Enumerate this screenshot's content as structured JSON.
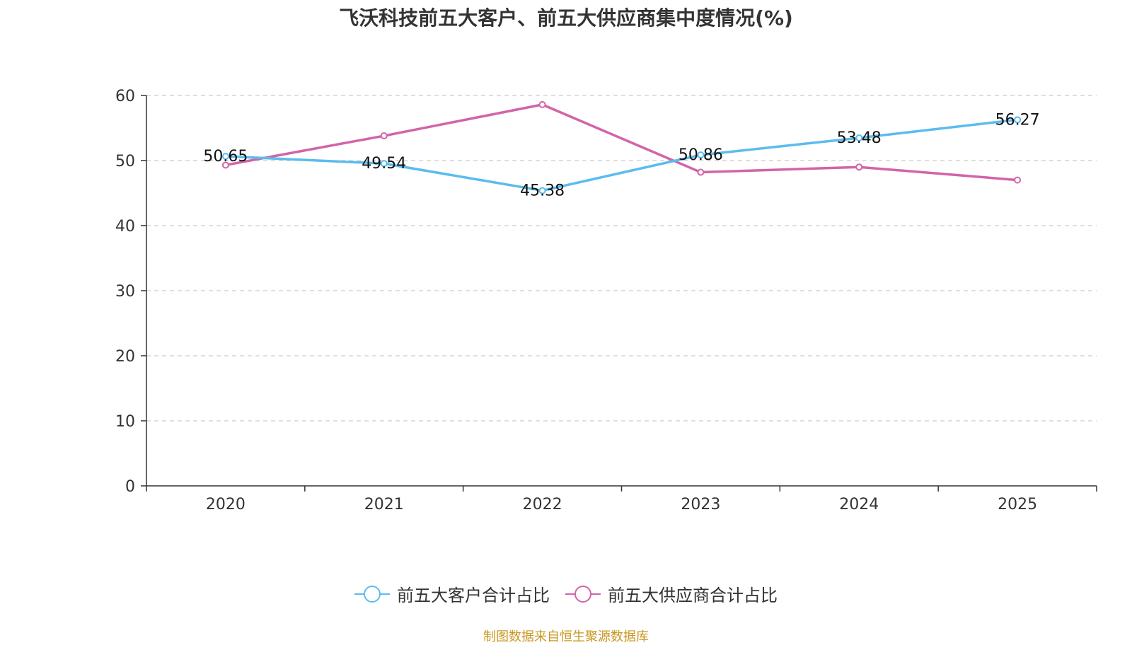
{
  "title": "飞沃科技前五大客户、前五大供应商集中度情况(%)",
  "source": "制图数据来自恒生聚源数据库",
  "colors": {
    "customer": "#5bbcee",
    "supplier": "#d264a8",
    "axis": "#333333",
    "grid": "#cccccc"
  },
  "chart_data": {
    "type": "line",
    "title": "飞沃科技前五大客户、前五大供应商集中度情况(%)",
    "categories": [
      "2020",
      "2021",
      "2022",
      "2023",
      "2024",
      "2025"
    ],
    "ylim": [
      0,
      60
    ],
    "yticks": [
      0,
      10,
      20,
      30,
      40,
      50,
      60
    ],
    "grid": true,
    "legend_position": "bottom-center",
    "series": [
      {
        "name": "前五大客户合计占比",
        "color": "#5bbcee",
        "values": [
          50.65,
          49.54,
          45.38,
          50.86,
          53.48,
          56.27
        ],
        "labels": [
          "50.65",
          "49.54",
          "45.38",
          "50.86",
          "53.48",
          "56.27"
        ],
        "show_labels": true
      },
      {
        "name": "前五大供应商合计占比",
        "color": "#d264a8",
        "values": [
          49.3,
          53.8,
          58.6,
          48.2,
          49.0,
          47.0
        ],
        "show_labels": false
      }
    ]
  }
}
